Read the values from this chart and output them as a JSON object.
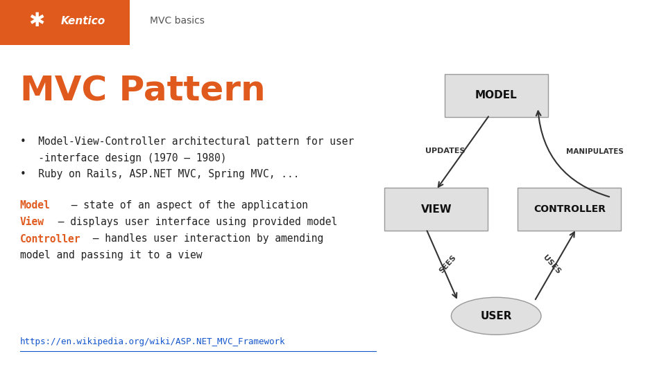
{
  "bg_color": "#ffffff",
  "header_orange": "#e05a1e",
  "title_text": "MVC Pattern",
  "title_color": "#e05a1e",
  "title_fontsize": 36,
  "header_label": "MVC basics",
  "bullet1_line1": "•  Model-View-Controller architectural pattern for user",
  "bullet1_line2": "   -interface design (1970 – 1980)",
  "bullet2": "•  Ruby on Rails, ASP.NET MVC, Spring MVC, ...",
  "def1_bold": "Model",
  "def1_rest": " – state of an aspect of the application",
  "def2_bold": "View",
  "def2_rest": " – displays user interface using provided model",
  "def3_bold": "Controller",
  "def3_rest": " – handles user interaction by amending",
  "def3_cont": "model and passing it to a view",
  "link_text": "https://en.wikipedia.org/wiki/ASP.NET_MVC_Framework",
  "link_color": "#1155cc",
  "box_color": "#e0e0e0",
  "box_edge_color": "#999999",
  "text_color": "#222222",
  "orange_color": "#e05a1e"
}
